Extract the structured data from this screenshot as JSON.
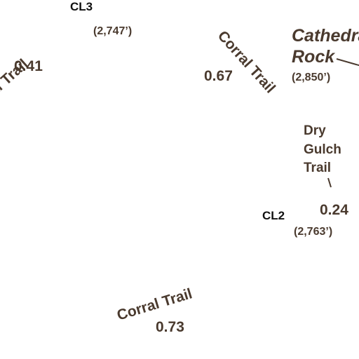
{
  "map": {
    "waypoints": [
      {
        "code": "CL3",
        "elevation": "(2,747’)"
      },
      {
        "code": "CL2",
        "elevation": "(2,763’)"
      }
    ],
    "landmark": {
      "name_line1": "Cathedral",
      "name_line2": "Rock",
      "elevation": "(2,850’)"
    },
    "trails": [
      {
        "label": "Corral Trail",
        "distance": "0.41"
      },
      {
        "label": "Corral Trail",
        "distance": "0.67"
      },
      {
        "label": "Dry Gulch Trail",
        "distance": "0.24"
      },
      {
        "label": "Corral Trail",
        "distance": "0.73"
      }
    ],
    "colors": {
      "label_brown": "#4a3a2e",
      "waypoint_black": "#111111",
      "background": "#ffffff"
    }
  }
}
